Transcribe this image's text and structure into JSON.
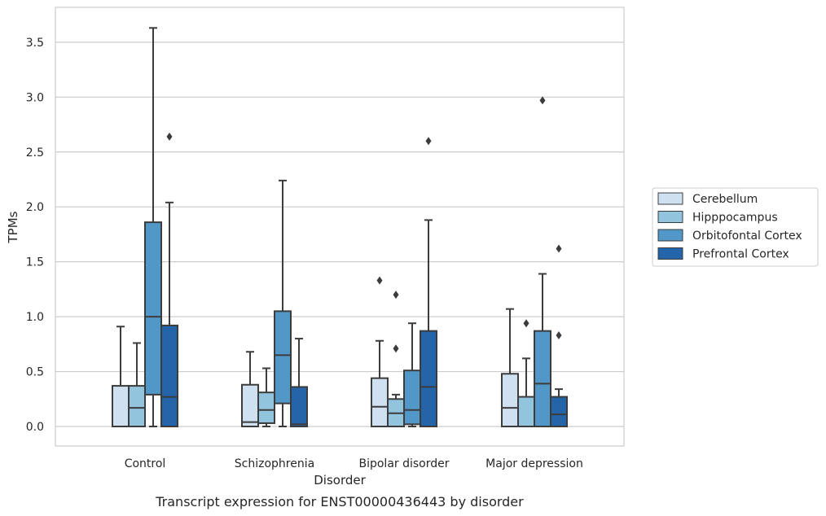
{
  "chart_data": {
    "type": "boxplot",
    "caption": "Transcript expression for ENST00000436443 by disorder",
    "xlabel": "Disorder",
    "ylabel": "TPMs",
    "ylim": [
      -0.17,
      3.8
    ],
    "yticks": [
      0.0,
      0.5,
      1.0,
      1.5,
      2.0,
      2.5,
      3.0,
      3.5
    ],
    "ytick_labels": [
      "0.0",
      "0.5",
      "1.0",
      "1.5",
      "2.0",
      "2.5",
      "3.0",
      "3.5"
    ],
    "categories": [
      "Control",
      "Schizophrenia",
      "Bipolar disorder",
      "Major depression"
    ],
    "grid": "horizontal",
    "legend_position": "center-right",
    "series": [
      {
        "name": "Cerebellum",
        "color": "#cfe0f0",
        "boxes": [
          {
            "whislo": 0.0,
            "q1": 0.0,
            "med": 0.0,
            "q3": 0.37,
            "whishi": 0.91,
            "fliers": []
          },
          {
            "whislo": 0.0,
            "q1": 0.0,
            "med": 0.04,
            "q3": 0.38,
            "whishi": 0.68,
            "fliers": []
          },
          {
            "whislo": 0.0,
            "q1": 0.0,
            "med": 0.18,
            "q3": 0.44,
            "whishi": 0.78,
            "fliers": [
              1.33
            ]
          },
          {
            "whislo": 0.0,
            "q1": 0.0,
            "med": 0.17,
            "q3": 0.48,
            "whishi": 1.07,
            "fliers": []
          }
        ]
      },
      {
        "name": "Hipppocampus",
        "color": "#93c4de",
        "boxes": [
          {
            "whislo": 0.0,
            "q1": 0.0,
            "med": 0.17,
            "q3": 0.37,
            "whishi": 0.76,
            "fliers": []
          },
          {
            "whislo": 0.0,
            "q1": 0.03,
            "med": 0.15,
            "q3": 0.31,
            "whishi": 0.53,
            "fliers": []
          },
          {
            "whislo": 0.0,
            "q1": 0.0,
            "med": 0.12,
            "q3": 0.25,
            "whishi": 0.29,
            "fliers": [
              1.2,
              0.71
            ]
          },
          {
            "whislo": 0.0,
            "q1": 0.0,
            "med": 0.0,
            "q3": 0.27,
            "whishi": 0.62,
            "fliers": [
              0.94
            ]
          }
        ]
      },
      {
        "name": "Orbitofontal Cortex",
        "color": "#5198c8",
        "boxes": [
          {
            "whislo": 0.0,
            "q1": 0.29,
            "med": 1.0,
            "q3": 1.86,
            "whishi": 3.63,
            "fliers": []
          },
          {
            "whislo": 0.0,
            "q1": 0.21,
            "med": 0.65,
            "q3": 1.05,
            "whishi": 2.24,
            "fliers": []
          },
          {
            "whislo": 0.0,
            "q1": 0.02,
            "med": 0.15,
            "q3": 0.51,
            "whishi": 0.94,
            "fliers": []
          },
          {
            "whislo": 0.0,
            "q1": 0.0,
            "med": 0.39,
            "q3": 0.87,
            "whishi": 1.39,
            "fliers": [
              2.97
            ]
          }
        ]
      },
      {
        "name": "Prefrontal Cortex",
        "color": "#2464a8",
        "boxes": [
          {
            "whislo": 0.0,
            "q1": 0.0,
            "med": 0.27,
            "q3": 0.92,
            "whishi": 2.04,
            "fliers": [
              2.64
            ]
          },
          {
            "whislo": 0.0,
            "q1": 0.0,
            "med": 0.02,
            "q3": 0.36,
            "whishi": 0.8,
            "fliers": []
          },
          {
            "whislo": 0.0,
            "q1": 0.0,
            "med": 0.36,
            "q3": 0.87,
            "whishi": 1.88,
            "fliers": [
              2.6
            ]
          },
          {
            "whislo": 0.0,
            "q1": 0.0,
            "med": 0.11,
            "q3": 0.27,
            "whishi": 0.34,
            "fliers": [
              1.62,
              0.83
            ]
          }
        ]
      }
    ]
  }
}
